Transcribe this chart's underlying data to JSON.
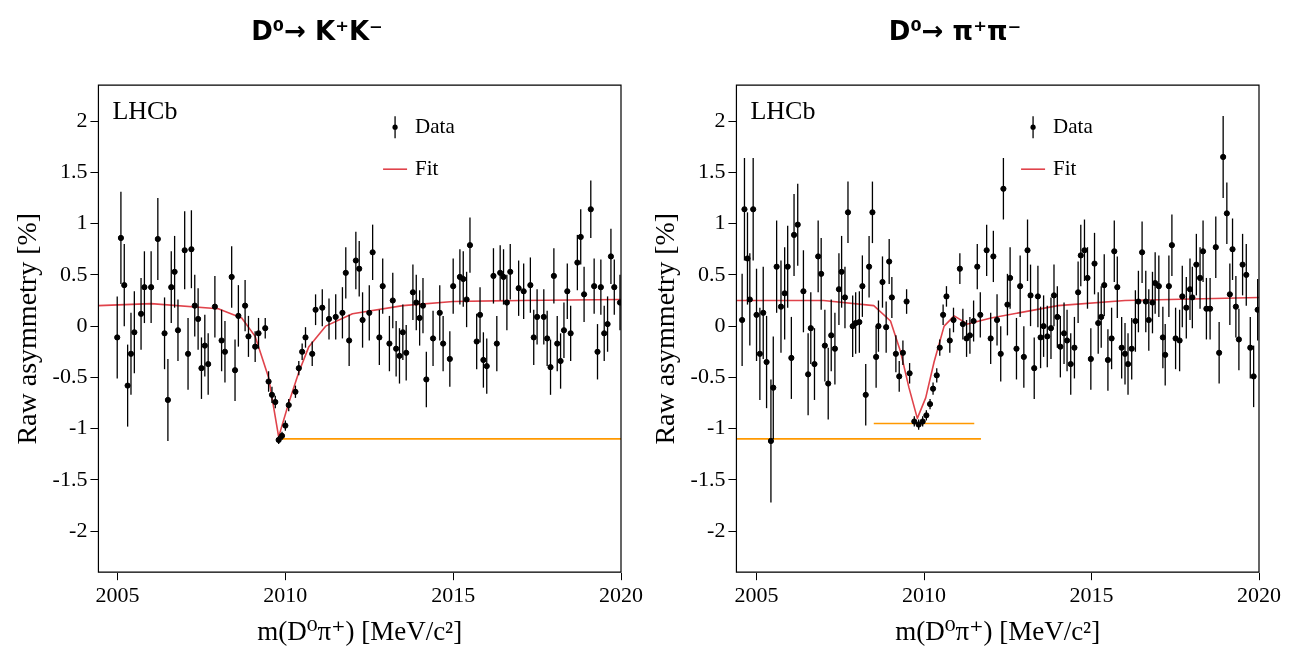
{
  "chart_data": [
    {
      "type": "scatter",
      "title": "D⁰→ K⁺K⁻",
      "xlabel": "m(D⁰π⁺) [MeV/c²]",
      "ylabel": "Raw asymmetry [%]",
      "annotations": [
        "LHCb"
      ],
      "xlim": [
        2004.43,
        2020
      ],
      "xticks": [
        2005,
        2010,
        2015,
        2020
      ],
      "ylim": [
        -2.4,
        2.35
      ],
      "yticks": [
        -2,
        -1.5,
        -1,
        -0.5,
        0,
        0.5,
        1,
        1.5,
        2
      ],
      "grid": false,
      "legend": "top right",
      "series": [
        {
          "name": "Data",
          "marker": "circle",
          "color": "#000000",
          "x": [
            2004.99,
            2005.1,
            2005.2,
            2005.3,
            2005.4,
            2005.5,
            2005.7,
            2005.8,
            2006.0,
            2006.2,
            2006.4,
            2006.5,
            2006.6,
            2006.7,
            2006.8,
            2007.0,
            2007.1,
            2007.2,
            2007.3,
            2007.4,
            2007.5,
            2007.6,
            2007.7,
            2007.9,
            2008.1,
            2008.2,
            2008.4,
            2008.5,
            2008.6,
            2008.8,
            2008.9,
            2009.1,
            2009.2,
            2009.4,
            2009.5,
            2009.6,
            2009.7,
            2009.8,
            2009.9,
            2010.0,
            2010.1,
            2010.3,
            2010.4,
            2010.5,
            2010.6,
            2010.8,
            2010.9,
            2011.1,
            2011.3,
            2011.5,
            2011.7,
            2011.8,
            2011.9,
            2012.1,
            2012.2,
            2012.3,
            2012.5,
            2012.6,
            2012.8,
            2012.9,
            2013.1,
            2013.2,
            2013.3,
            2013.4,
            2013.5,
            2013.6,
            2013.8,
            2013.9,
            2014.0,
            2014.1,
            2014.2,
            2014.4,
            2014.6,
            2014.7,
            2014.9,
            2015.0,
            2015.2,
            2015.3,
            2015.4,
            2015.5,
            2015.7,
            2015.8,
            2015.9,
            2016.0,
            2016.2,
            2016.3,
            2016.4,
            2016.5,
            2016.6,
            2016.7,
            2016.95,
            2017.1,
            2017.3,
            2017.4,
            2017.5,
            2017.7,
            2017.8,
            2017.9,
            2018.0,
            2018.1,
            2018.2,
            2018.3,
            2018.4,
            2018.5,
            2018.7,
            2018.8,
            2018.9,
            2019.1,
            2019.2,
            2019.3,
            2019.4,
            2019.5,
            2019.6,
            2019.7,
            2019.8,
            2019.97
          ],
          "values": [
            -0.11,
            0.86,
            0.4,
            -0.58,
            -0.27,
            -0.06,
            0.12,
            0.38,
            0.38,
            0.85,
            -0.07,
            -0.72,
            0.38,
            0.53,
            -0.04,
            0.74,
            -0.27,
            0.75,
            0.2,
            0.07,
            -0.41,
            -0.19,
            -0.37,
            0.19,
            -0.14,
            -0.25,
            0.48,
            -0.43,
            0.1,
            0.2,
            -0.1,
            -0.2,
            -0.07,
            -0.02,
            -0.54,
            -0.67,
            -0.74,
            -1.11,
            -1.07,
            -0.97,
            -0.77,
            -0.64,
            -0.41,
            -0.25,
            -0.11,
            -0.27,
            0.16,
            0.18,
            0.07,
            0.09,
            0.13,
            0.52,
            -0.14,
            0.64,
            0.56,
            0.06,
            0.13,
            0.72,
            -0.11,
            0.39,
            -0.17,
            0.25,
            -0.22,
            -0.29,
            -0.06,
            -0.26,
            0.33,
            0.23,
            0.08,
            0.2,
            -0.52,
            -0.12,
            0.13,
            -0.17,
            -0.32,
            0.39,
            0.48,
            0.46,
            0.26,
            0.79,
            -0.15,
            0.11,
            -0.33,
            -0.39,
            0.49,
            -0.17,
            0.52,
            0.48,
            0.23,
            0.53,
            0.37,
            0.34,
            0.4,
            -0.11,
            0.09,
            0.09,
            -0.12,
            -0.4,
            0.49,
            -0.17,
            -0.34,
            -0.04,
            0.34,
            -0.07,
            0.62,
            0.87,
            0.31,
            1.14,
            0.39,
            -0.25,
            0.38,
            -0.07,
            0.02,
            0.68,
            0.38,
            0.23
          ],
          "errors": [
            0.4,
            0.45,
            0.4,
            0.4,
            0.4,
            0.4,
            0.35,
            0.35,
            0.35,
            0.4,
            0.35,
            0.4,
            0.35,
            0.35,
            0.3,
            0.38,
            0.35,
            0.38,
            0.3,
            0.3,
            0.3,
            0.3,
            0.3,
            0.3,
            0.3,
            0.3,
            0.3,
            0.3,
            0.3,
            0.25,
            0.2,
            0.15,
            0.15,
            0.1,
            0.1,
            0.08,
            0.06,
            0.04,
            0.04,
            0.05,
            0.06,
            0.06,
            0.07,
            0.08,
            0.1,
            0.12,
            0.15,
            0.18,
            0.2,
            0.22,
            0.25,
            0.25,
            0.25,
            0.28,
            0.27,
            0.27,
            0.27,
            0.27,
            0.27,
            0.27,
            0.27,
            0.27,
            0.27,
            0.27,
            0.27,
            0.27,
            0.27,
            0.27,
            0.27,
            0.27,
            0.27,
            0.27,
            0.27,
            0.27,
            0.27,
            0.27,
            0.27,
            0.27,
            0.27,
            0.27,
            0.27,
            0.27,
            0.27,
            0.27,
            0.27,
            0.27,
            0.27,
            0.27,
            0.27,
            0.27,
            0.27,
            0.27,
            0.27,
            0.27,
            0.27,
            0.27,
            0.27,
            0.27,
            0.27,
            0.27,
            0.27,
            0.27,
            0.27,
            0.27,
            0.27,
            0.27,
            0.27,
            0.28,
            0.27,
            0.27,
            0.27,
            0.27,
            0.27,
            0.27,
            0.27,
            0.27
          ]
        },
        {
          "name": "Fit",
          "type": "line",
          "color": "#e0434b",
          "x": [
            2004.43,
            2006,
            2008,
            2008.7,
            2009.1,
            2009.5,
            2009.8,
            2010.1,
            2010.4,
            2010.7,
            2011.2,
            2012,
            2013.5,
            2015,
            2017,
            2020
          ],
          "values": [
            0.2,
            0.22,
            0.17,
            0.08,
            -0.1,
            -0.5,
            -1.08,
            -0.75,
            -0.45,
            -0.2,
            0.0,
            0.12,
            0.2,
            0.24,
            0.25,
            0.26
          ]
        },
        {
          "type": "line",
          "color": "#ff9900",
          "x": [
            2009.8,
            2020
          ],
          "values": [
            -1.1,
            -1.1
          ]
        }
      ]
    },
    {
      "type": "scatter",
      "title": "D⁰→ π⁺π⁻",
      "xlabel": "m(D⁰π⁺) [MeV/c²]",
      "ylabel": "Raw asymmetry [%]",
      "annotations": [
        "LHCb"
      ],
      "xlim": [
        2004.4,
        2020
      ],
      "xticks": [
        2005,
        2010,
        2015,
        2020
      ],
      "ylim": [
        -2.4,
        2.35
      ],
      "yticks": [
        -2,
        -1.5,
        -1,
        -0.5,
        0,
        0.5,
        1,
        1.5,
        2
      ],
      "grid": false,
      "legend": "top right",
      "series": [
        {
          "name": "Data",
          "marker": "circle",
          "color": "#000000",
          "x": [
            2004.57,
            2004.64,
            2004.73,
            2004.8,
            2004.9,
            2005.0,
            2005.1,
            2005.2,
            2005.3,
            2005.43,
            2005.5,
            2005.6,
            2005.73,
            2005.84,
            2005.93,
            2006.04,
            2006.12,
            2006.23,
            2006.4,
            2006.54,
            2006.62,
            2006.73,
            2006.84,
            2006.93,
            2007.04,
            2007.14,
            2007.23,
            2007.34,
            2007.46,
            2007.54,
            2007.64,
            2007.73,
            2007.87,
            2007.96,
            2008.07,
            2008.16,
            2008.26,
            2008.36,
            2008.46,
            2008.57,
            2008.64,
            2008.76,
            2008.87,
            2008.96,
            2009.04,
            2009.16,
            2009.26,
            2009.37,
            2009.48,
            2009.57,
            2009.71,
            2009.84,
            2009.96,
            2010.07,
            2010.18,
            2010.27,
            2010.38,
            2010.47,
            2010.57,
            2010.67,
            2010.77,
            2010.88,
            2011.07,
            2011.16,
            2011.27,
            2011.37,
            2011.48,
            2011.59,
            2011.68,
            2011.87,
            2011.99,
            2012.07,
            2012.18,
            2012.29,
            2012.37,
            2012.49,
            2012.57,
            2012.76,
            2012.87,
            2012.98,
            2013.09,
            2013.18,
            2013.29,
            2013.4,
            2013.48,
            2013.57,
            2013.68,
            2013.79,
            2013.88,
            2013.98,
            2014.07,
            2014.18,
            2014.27,
            2014.38,
            2014.49,
            2014.6,
            2014.68,
            2014.79,
            2014.88,
            2014.98,
            2015.09,
            2015.2,
            2015.29,
            2015.38,
            2015.49,
            2015.6,
            2015.68,
            2015.77,
            2015.9,
            2016.0,
            2016.09,
            2016.2,
            2016.31,
            2016.4,
            2016.51,
            2016.62,
            2016.71,
            2016.82,
            2016.9,
            2017.01,
            2017.13,
            2017.2,
            2017.31,
            2017.4,
            2017.51,
            2017.63,
            2017.71,
            2017.83,
            2017.94,
            2018.01,
            2018.13,
            2018.24,
            2018.33,
            2018.43,
            2018.54,
            2018.71,
            2018.81,
            2018.93,
            2019.04,
            2019.13,
            2019.21,
            2019.31,
            2019.4,
            2019.51,
            2019.62,
            2019.74,
            2019.84,
            2019.96
          ],
          "values": [
            0.06,
            1.14,
            0.66,
            0.26,
            1.14,
            0.11,
            -0.27,
            0.13,
            -0.35,
            -1.12,
            -0.6,
            0.58,
            0.19,
            0.32,
            0.58,
            -0.31,
            0.89,
            0.99,
            0.34,
            -0.47,
            -0.02,
            -0.37,
            0.68,
            0.51,
            -0.19,
            -0.56,
            -0.09,
            -0.22,
            0.36,
            0.53,
            0.28,
            1.11,
            0.0,
            0.03,
            0.04,
            0.39,
            -0.67,
            0.58,
            1.11,
            -0.3,
            0.0,
            0.43,
            -0.01,
            0.63,
            0.28,
            -0.27,
            -0.49,
            -0.26,
            0.24,
            -0.46,
            -0.93,
            -0.96,
            -0.93,
            -0.87,
            -0.76,
            -0.61,
            -0.48,
            -0.21,
            0.11,
            0.29,
            -0.14,
            0.06,
            0.56,
            0.02,
            -0.12,
            -0.09,
            0.05,
            0.58,
            0.11,
            0.74,
            -0.12,
            0.68,
            0.06,
            -0.27,
            1.34,
            0.21,
            0.47,
            -0.22,
            0.39,
            -0.3,
            0.74,
            0.3,
            -0.41,
            0.29,
            -0.11,
            0.0,
            -0.1,
            -0.02,
            0.3,
            0.09,
            -0.2,
            -0.07,
            -0.14,
            -0.37,
            -0.21,
            0.33,
            0.69,
            0.74,
            0.47,
            -0.32,
            0.61,
            0.03,
            0.09,
            0.4,
            -0.33,
            -0.12,
            0.73,
            0.38,
            -0.21,
            -0.27,
            -0.37,
            -0.22,
            0.05,
            0.24,
            0.72,
            0.24,
            0.06,
            0.23,
            0.42,
            0.39,
            -0.11,
            -0.28,
            0.39,
            0.79,
            -0.12,
            -0.14,
            0.29,
            0.18,
            0.36,
            0.28,
            0.6,
            0.47,
            0.73,
            0.17,
            0.17,
            0.77,
            -0.26,
            1.65,
            1.1,
            0.31,
            0.75,
            0.19,
            -0.13,
            0.6,
            0.5,
            -0.21,
            -0.49,
            0.16
          ],
          "errors": [
            0.45,
            0.5,
            0.45,
            0.45,
            0.5,
            0.45,
            0.45,
            0.45,
            0.45,
            0.6,
            0.5,
            0.45,
            0.45,
            0.45,
            0.4,
            0.4,
            0.4,
            0.4,
            0.4,
            0.4,
            0.35,
            0.35,
            0.35,
            0.35,
            0.35,
            0.35,
            0.35,
            0.35,
            0.35,
            0.35,
            0.3,
            0.3,
            0.3,
            0.3,
            0.3,
            0.3,
            0.3,
            0.3,
            0.3,
            0.3,
            0.25,
            0.25,
            0.25,
            0.22,
            0.2,
            0.18,
            0.15,
            0.12,
            0.12,
            0.1,
            0.05,
            0.05,
            0.05,
            0.05,
            0.05,
            0.06,
            0.07,
            0.08,
            0.1,
            0.1,
            0.12,
            0.12,
            0.15,
            0.15,
            0.18,
            0.18,
            0.2,
            0.22,
            0.22,
            0.25,
            0.25,
            0.25,
            0.25,
            0.27,
            0.3,
            0.3,
            0.3,
            0.3,
            0.3,
            0.3,
            0.3,
            0.3,
            0.3,
            0.3,
            0.3,
            0.3,
            0.3,
            0.3,
            0.3,
            0.3,
            0.3,
            0.3,
            0.3,
            0.3,
            0.3,
            0.3,
            0.3,
            0.3,
            0.3,
            0.3,
            0.3,
            0.3,
            0.3,
            0.3,
            0.3,
            0.3,
            0.3,
            0.3,
            0.3,
            0.3,
            0.3,
            0.3,
            0.3,
            0.3,
            0.3,
            0.3,
            0.3,
            0.3,
            0.3,
            0.3,
            0.3,
            0.3,
            0.3,
            0.3,
            0.3,
            0.3,
            0.3,
            0.3,
            0.3,
            0.3,
            0.3,
            0.3,
            0.3,
            0.3,
            0.3,
            0.3,
            0.3,
            0.4,
            0.3,
            0.3,
            0.3,
            0.3,
            0.3,
            0.3,
            0.3,
            0.3,
            0.3,
            0.3
          ]
        },
        {
          "name": "Fit",
          "type": "line",
          "color": "#e0434b",
          "x": [
            2004.4,
            2007,
            2008.5,
            2009.0,
            2009.3,
            2009.55,
            2009.8,
            2010.05,
            2010.3,
            2010.6,
            2010.9,
            2011.3,
            2012,
            2014,
            2016,
            2020
          ],
          "values": [
            0.25,
            0.25,
            0.2,
            0.05,
            -0.25,
            -0.6,
            -0.9,
            -0.7,
            -0.35,
            0.0,
            0.1,
            0.02,
            0.08,
            0.2,
            0.25,
            0.28
          ]
        },
        {
          "type": "line",
          "color": "#ff9900",
          "x": [
            2004.4,
            2011.7
          ],
          "values": [
            -1.1,
            -1.1
          ]
        },
        {
          "type": "line",
          "color": "#ff9900",
          "x": [
            2008.5,
            2011.5
          ],
          "values": [
            -0.95,
            -0.95
          ]
        }
      ]
    }
  ]
}
